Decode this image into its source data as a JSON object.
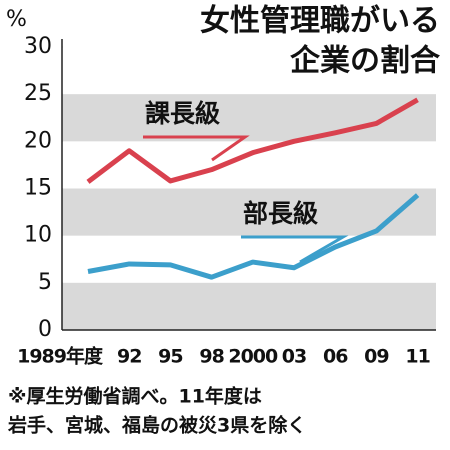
{
  "chart_data": {
    "type": "line",
    "title": [
      "女性管理職がいる",
      "企業の割合"
    ],
    "y_label": "%",
    "note": [
      "※厚生労働省調べ。11年度は",
      "岩手、宮城、福島の被災3県を除く"
    ],
    "categories": [
      "1989年度",
      "92",
      "95",
      "98",
      "2000",
      "03",
      "06",
      "09",
      "11"
    ],
    "series": [
      {
        "name": "課長級",
        "color": "#d9414e",
        "values": [
          15.7,
          19.0,
          15.8,
          17.0,
          18.8,
          20.0,
          20.9,
          21.9,
          24.4
        ]
      },
      {
        "name": "部長級",
        "color": "#3c9fcb",
        "values": [
          6.2,
          7.0,
          6.9,
          5.6,
          7.2,
          6.6,
          8.8,
          10.5,
          14.3
        ]
      }
    ],
    "ylim": [
      0,
      30
    ],
    "yticks": [
      0,
      5,
      10,
      15,
      20,
      25,
      30
    ],
    "bands": true
  }
}
